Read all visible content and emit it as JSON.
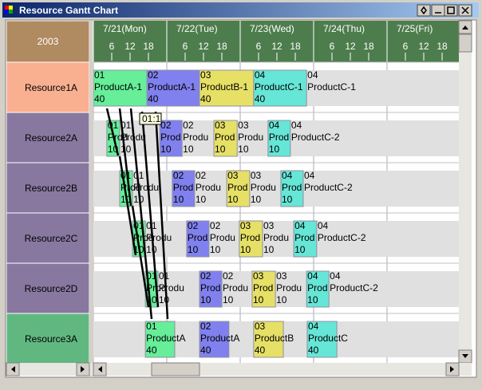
{
  "window": {
    "title": "Resource Gantt Chart"
  },
  "year": "2003",
  "days": [
    "7/21(Mon)",
    "7/22(Tue)",
    "7/23(Wed)",
    "7/24(Thu)",
    "7/25(Fri)"
  ],
  "hour_ticks": [
    6,
    12,
    18
  ],
  "tooltip": "01:1",
  "colors": {
    "01": "#66ee99",
    "02": "#8080ee",
    "03": "#e6e066",
    "04": "#66e6d6"
  },
  "rows": [
    {
      "name": "Resource1A",
      "color": "#f8b090",
      "tasks": [
        {
          "id": "01",
          "lines": [
            "01",
            "ProductA-1",
            "40"
          ],
          "start": 0,
          "end": 17.5
        },
        {
          "id": "02",
          "lines": [
            "02",
            "ProductA-1",
            "40"
          ],
          "start": 17.5,
          "end": 34.7
        },
        {
          "id": "03",
          "lines": [
            "03",
            "ProductB-1",
            "40"
          ],
          "start": 34.7,
          "end": 52.4
        },
        {
          "id": "04",
          "lines": [
            "04",
            "ProductC-1",
            "40"
          ],
          "start": 52.4,
          "end": 69.7,
          "after": [
            "04",
            "ProductC-1"
          ]
        }
      ]
    },
    {
      "name": "Resource2A",
      "color": "#8878a0",
      "tasks": [
        {
          "id": "01",
          "lines": [
            "01",
            "Prod",
            "10"
          ],
          "start": 4.4,
          "end": 8.6,
          "after": [
            "01",
            "Produ",
            "10"
          ]
        },
        {
          "id": "02",
          "lines": [
            "02",
            "Prod",
            "10"
          ],
          "start": 21.7,
          "end": 29.0,
          "after": [
            "02",
            "Produ",
            "10"
          ]
        },
        {
          "id": "03",
          "lines": [
            "03",
            "Prod",
            "10"
          ],
          "start": 39.4,
          "end": 47.0,
          "after": [
            "03",
            "Produ",
            "10"
          ]
        },
        {
          "id": "04",
          "lines": [
            "04",
            "Prod",
            "10"
          ],
          "start": 57.1,
          "end": 64.4,
          "after": [
            "04",
            "ProductC-2"
          ]
        }
      ]
    },
    {
      "name": "Resource2B",
      "color": "#8878a0",
      "tasks": [
        {
          "id": "01",
          "lines": [
            "01",
            "Prod",
            "10"
          ],
          "start": 8.6,
          "end": 12.8,
          "after": [
            "01",
            "Produ",
            "10"
          ]
        },
        {
          "id": "02",
          "lines": [
            "02",
            "Prod",
            "10"
          ],
          "start": 25.8,
          "end": 33.1,
          "after": [
            "02",
            "Produ",
            "10"
          ]
        },
        {
          "id": "03",
          "lines": [
            "03",
            "Prod",
            "10"
          ],
          "start": 43.6,
          "end": 51.1,
          "after": [
            "03",
            "Produ",
            "10"
          ]
        },
        {
          "id": "04",
          "lines": [
            "04",
            "Prod",
            "10"
          ],
          "start": 61.3,
          "end": 68.6,
          "after": [
            "04",
            "ProductC-2"
          ]
        }
      ]
    },
    {
      "name": "Resource2C",
      "color": "#8878a0",
      "tasks": [
        {
          "id": "01",
          "lines": [
            "01",
            "Prod",
            "10"
          ],
          "start": 12.8,
          "end": 17.0,
          "after": [
            "01",
            "Produ",
            "10"
          ]
        },
        {
          "id": "02",
          "lines": [
            "02",
            "Prod",
            "10"
          ],
          "start": 30.5,
          "end": 37.8,
          "after": [
            "02",
            "Produ",
            "10"
          ]
        },
        {
          "id": "03",
          "lines": [
            "03",
            "Prod",
            "10"
          ],
          "start": 47.7,
          "end": 55.3,
          "after": [
            "03",
            "Produ",
            "10"
          ]
        },
        {
          "id": "04",
          "lines": [
            "04",
            "Prod",
            "10"
          ],
          "start": 65.5,
          "end": 73.0,
          "after": [
            "04",
            "ProductC-2"
          ]
        }
      ]
    },
    {
      "name": "Resource2D",
      "color": "#8878a0",
      "tasks": [
        {
          "id": "01",
          "lines": [
            "01",
            "Prod",
            "10"
          ],
          "start": 17.0,
          "end": 21.1,
          "after": [
            "01",
            "Produ",
            "10"
          ]
        },
        {
          "id": "02",
          "lines": [
            "02",
            "Prod",
            "10"
          ],
          "start": 34.7,
          "end": 42.0,
          "after": [
            "02",
            "Produ",
            "10"
          ]
        },
        {
          "id": "03",
          "lines": [
            "03",
            "Prod",
            "10"
          ],
          "start": 51.9,
          "end": 59.5,
          "after": [
            "03",
            "Produ",
            "10"
          ]
        },
        {
          "id": "04",
          "lines": [
            "04",
            "Prod",
            "10"
          ],
          "start": 69.7,
          "end": 77.0,
          "after": [
            "04",
            "ProductC-2"
          ]
        }
      ]
    },
    {
      "name": "Resource3A",
      "color": "#60b880",
      "tasks": [
        {
          "id": "01",
          "lines": [
            "01",
            "ProductA",
            "40"
          ],
          "start": 17.0,
          "end": 26.6
        },
        {
          "id": "02",
          "lines": [
            "02",
            "ProductA",
            "40"
          ],
          "start": 34.7,
          "end": 44.3
        },
        {
          "id": "03",
          "lines": [
            "03",
            "ProductB",
            "40"
          ],
          "start": 52.4,
          "end": 62.1
        },
        {
          "id": "04",
          "lines": [
            "04",
            "ProductC",
            "40"
          ],
          "start": 69.9,
          "end": 79.6
        }
      ]
    }
  ]
}
